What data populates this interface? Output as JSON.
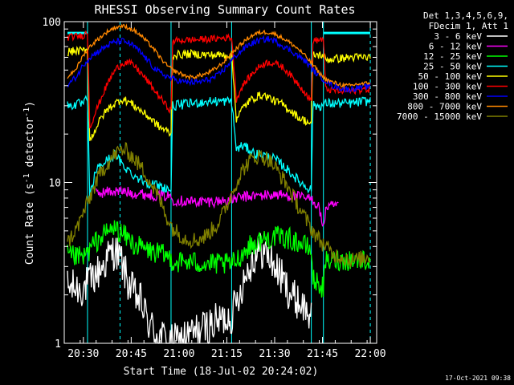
{
  "chart_data": {
    "type": "line",
    "title": "RHESSI Observing Summary Count Rates",
    "xlabel": "Start Time (18-Jul-02 20:24:02)",
    "ylabel_main": "Count Rate (s",
    "ylabel_sup1": "-1",
    "ylabel_mid": " detector",
    "ylabel_sup2": "-1",
    "ylabel_end": ")",
    "x_ticks": [
      "20:30",
      "20:45",
      "21:00",
      "21:15",
      "21:30",
      "21:45",
      "22:00"
    ],
    "x_tick_minutes": [
      6,
      21,
      36,
      51,
      66,
      81,
      96
    ],
    "xlim_minutes": [
      0,
      98
    ],
    "y_scale": "log",
    "ylim": [
      1,
      100
    ],
    "y_ticks": [
      "1",
      "10",
      "100"
    ],
    "y_tick_values": [
      1,
      10,
      100
    ],
    "legend_header": [
      "Det 1,3,4,5,6,9,",
      "FDecim 1, Att 1"
    ],
    "legend_placement": "top-right outside",
    "footer_date": "17-Oct-2021 09:38",
    "vlines_dashed_minutes": [
      17.5,
      96
    ],
    "vlines_solid_minutes": [
      7.3,
      33.5,
      52.5,
      77.5,
      81.3
    ],
    "series": [
      {
        "name": "3 - 6 keV",
        "color": "#ffffff",
        "x": [
          1,
          6,
          8,
          12,
          14,
          16,
          18,
          20,
          22,
          24,
          26,
          28,
          30,
          32,
          33.5,
          34,
          52.5,
          54,
          56,
          58,
          60,
          62,
          64,
          66,
          68,
          70,
          72,
          74,
          76,
          77.5
        ],
        "y": [
          2.2,
          2.2,
          2.4,
          3,
          3.5,
          3.8,
          3.2,
          2.4,
          2,
          1.8,
          1.4,
          1.2,
          1.1,
          1.05,
          1,
          1,
          1.5,
          1.8,
          2.4,
          3,
          3.6,
          3.8,
          3.5,
          3,
          2.6,
          2.2,
          1.9,
          1.8,
          1.6,
          1.5
        ]
      },
      {
        "name": "6 - 12 keV",
        "color": "#ff00ff",
        "x": [
          10,
          14,
          18,
          22,
          26,
          30,
          33.5,
          34,
          40,
          46,
          52.5,
          54,
          58,
          62,
          66,
          70,
          74,
          78,
          80,
          81.3,
          82,
          86
        ],
        "y": [
          8.5,
          8.8,
          8.8,
          8.6,
          8.4,
          8.3,
          8.2,
          7.8,
          7.6,
          7.6,
          7.8,
          8,
          8.2,
          8.3,
          8.4,
          8.3,
          8.1,
          7.8,
          7,
          5,
          7,
          7.2
        ]
      },
      {
        "name": "12 - 25 keV",
        "color": "#00ff00",
        "x": [
          1,
          6,
          8,
          10,
          14,
          16,
          18,
          20,
          22,
          26,
          30,
          33.5,
          34,
          40,
          46,
          52.5,
          54,
          58,
          62,
          66,
          70,
          74,
          77.5,
          78,
          81.3,
          82,
          86,
          90,
          94,
          96
        ],
        "y": [
          3.5,
          3.4,
          3.8,
          4.3,
          5,
          5.2,
          4.8,
          4.5,
          4.1,
          3.8,
          3.6,
          3.4,
          3.2,
          3.2,
          3.1,
          3.1,
          3.3,
          4,
          4.4,
          4.6,
          4.5,
          4.2,
          3.8,
          2.5,
          2.2,
          3.2,
          3.3,
          3.3,
          3.3,
          3.3
        ]
      },
      {
        "name": "25 - 50 keV",
        "color": "#00ffff",
        "x": [
          1,
          6,
          7.3,
          8,
          10,
          12,
          14,
          16,
          18,
          20,
          22,
          26,
          30,
          33.5,
          34,
          40,
          46,
          52.5,
          54,
          56,
          58,
          60,
          62,
          64,
          66,
          68,
          70,
          72,
          74,
          77.5,
          78,
          81.3,
          82,
          86,
          90,
          94,
          96
        ],
        "y": [
          30,
          31,
          33,
          8,
          12,
          13,
          14,
          15,
          13,
          12,
          11,
          10,
          9.5,
          9,
          30,
          31,
          32,
          32,
          16,
          17,
          16,
          15,
          15,
          14.5,
          14,
          13,
          12,
          11,
          10,
          9,
          30,
          30,
          31,
          31,
          31,
          32,
          32
        ]
      },
      {
        "name": "50 - 100 keV",
        "color": "#ffff00",
        "x": [
          1,
          6,
          7.3,
          8,
          10,
          12,
          14,
          16,
          18,
          20,
          22,
          24,
          26,
          28,
          30,
          32,
          33.5,
          34,
          40,
          46,
          52.5,
          54,
          56,
          58,
          60,
          62,
          64,
          66,
          68,
          70,
          72,
          74,
          76,
          77.5,
          78,
          80,
          81.3,
          82,
          86,
          90,
          94,
          96
        ],
        "y": [
          65,
          66,
          68,
          18,
          22,
          26,
          29,
          31,
          33,
          32,
          30,
          28,
          26,
          24,
          22,
          21,
          20,
          62,
          63,
          62,
          62,
          25,
          29,
          32,
          34,
          35,
          34,
          32,
          31,
          29,
          27,
          25,
          24,
          23,
          62,
          62,
          62,
          58,
          59,
          60,
          60,
          60
        ]
      },
      {
        "name": "100 - 300 keV",
        "color": "#ff0000",
        "x": [
          1,
          6,
          7.3,
          8,
          10,
          12,
          14,
          16,
          18,
          20,
          22,
          24,
          26,
          28,
          30,
          32,
          33.5,
          34,
          40,
          46,
          52.5,
          54,
          56,
          58,
          60,
          62,
          64,
          66,
          68,
          70,
          72,
          74,
          76,
          77.5,
          78,
          80,
          81.3,
          82,
          86,
          90,
          94,
          96
        ],
        "y": [
          80,
          82,
          86,
          22,
          28,
          35,
          43,
          50,
          55,
          56,
          53,
          48,
          43,
          38,
          34,
          30,
          28,
          76,
          77,
          78,
          80,
          33,
          40,
          45,
          50,
          54,
          56,
          55,
          53,
          49,
          44,
          40,
          35,
          32,
          76,
          77,
          78,
          38,
          37,
          37,
          38,
          38
        ]
      },
      {
        "name": "300 - 800 keV",
        "color": "#0000ff",
        "x": [
          1,
          4,
          6,
          8,
          10,
          12,
          14,
          16,
          18,
          20,
          22,
          24,
          26,
          28,
          30,
          32,
          34,
          36,
          38,
          40,
          42,
          44,
          46,
          48,
          50,
          52,
          54,
          56,
          58,
          60,
          62,
          64,
          66,
          68,
          70,
          72,
          74,
          76,
          78,
          80,
          82,
          84,
          86,
          88,
          90,
          92,
          94,
          96
        ],
        "y": [
          40,
          46,
          54,
          60,
          64,
          68,
          72,
          75,
          76,
          74,
          70,
          64,
          58,
          52,
          48,
          46,
          44,
          43,
          42,
          42,
          42,
          43,
          44,
          46,
          50,
          56,
          62,
          67,
          72,
          75,
          77,
          78,
          76,
          72,
          68,
          64,
          60,
          56,
          50,
          46,
          43,
          40,
          39,
          38,
          38,
          39,
          39,
          40
        ]
      },
      {
        "name": "800 - 7000 keV",
        "color": "#ff8800",
        "x": [
          1,
          4,
          6,
          8,
          10,
          12,
          14,
          16,
          18,
          20,
          22,
          24,
          26,
          28,
          30,
          32,
          34,
          36,
          38,
          40,
          42,
          44,
          46,
          48,
          50,
          52,
          54,
          56,
          58,
          60,
          62,
          64,
          66,
          68,
          70,
          72,
          74,
          76,
          78,
          80,
          82,
          84,
          86,
          88,
          90,
          92,
          94,
          96
        ],
        "y": [
          45,
          52,
          62,
          70,
          76,
          82,
          88,
          92,
          94,
          92,
          88,
          82,
          75,
          68,
          60,
          54,
          50,
          48,
          46,
          45,
          46,
          47,
          49,
          52,
          56,
          62,
          68,
          74,
          80,
          84,
          86,
          86,
          84,
          80,
          76,
          71,
          66,
          60,
          54,
          48,
          44,
          42,
          41,
          40,
          40,
          41,
          41,
          42
        ]
      },
      {
        "name": "7000 - 15000 keV",
        "color": "#808000",
        "x": [
          1,
          4,
          6,
          8,
          10,
          12,
          14,
          16,
          18,
          20,
          22,
          24,
          26,
          28,
          30,
          32,
          34,
          36,
          38,
          40,
          42,
          44,
          46,
          48,
          50,
          52,
          54,
          56,
          58,
          60,
          62,
          64,
          66,
          68,
          70,
          72,
          74,
          76,
          78,
          80,
          82,
          84,
          86,
          88,
          90,
          92,
          94,
          96
        ],
        "y": [
          4.2,
          5.2,
          6.5,
          8,
          10,
          12,
          13.5,
          15,
          16,
          15.5,
          14,
          12.5,
          11,
          9.2,
          7.8,
          6.2,
          5.2,
          4.8,
          4.5,
          4.4,
          4.4,
          4.6,
          5,
          5.5,
          6.5,
          8,
          10,
          12,
          13.5,
          14.5,
          14.5,
          14,
          12.5,
          11,
          9.5,
          8,
          6.8,
          5.8,
          5,
          4.4,
          4,
          3.6,
          3.5,
          3.4,
          3.3,
          3.3,
          3.4,
          3.5
        ]
      }
    ],
    "flat_lines": [
      {
        "color": "#00ffff",
        "x": [
          1,
          7.3
        ],
        "y": 85
      },
      {
        "color": "#00ffff",
        "x": [
          81.3,
          96
        ],
        "y": 85
      }
    ]
  }
}
